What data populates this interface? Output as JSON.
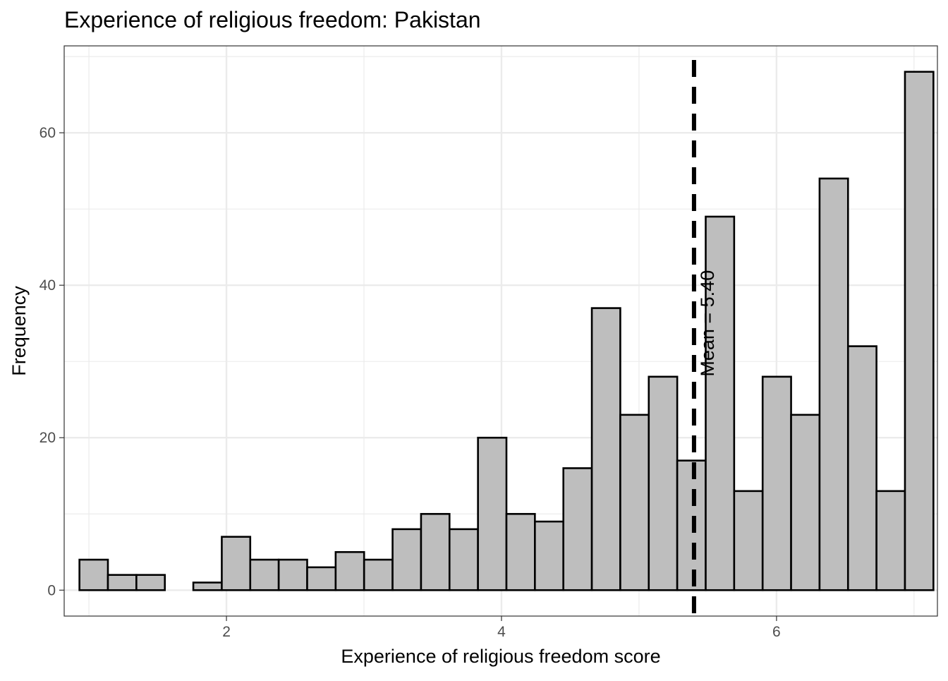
{
  "chart_data": {
    "type": "bar",
    "title": "Experience of religious freedom: Pakistan",
    "xlabel": "Experience of religious freedom score",
    "ylabel": "Frequency",
    "xlim": [
      0.82,
      7.17
    ],
    "ylim": [
      -3.4,
      71.4
    ],
    "x_ticks": [
      2,
      4,
      6
    ],
    "x_tick_labels": [
      "2",
      "4",
      "6"
    ],
    "y_ticks": [
      0,
      20,
      40,
      60
    ],
    "y_tick_labels": [
      "0",
      "20",
      "40",
      "60"
    ],
    "grid": true,
    "bin_width": 0.207,
    "bins_start": 0.931,
    "values": [
      4,
      2,
      2,
      0,
      1,
      7,
      4,
      4,
      3,
      5,
      4,
      8,
      10,
      8,
      20,
      10,
      9,
      16,
      37,
      23,
      28,
      17,
      49,
      13,
      28,
      23,
      54,
      32,
      13,
      68
    ],
    "bar_fill": "#bebebe",
    "bar_stroke": "#000000",
    "mean": 5.4,
    "mean_label": "Mean = 5.40"
  }
}
